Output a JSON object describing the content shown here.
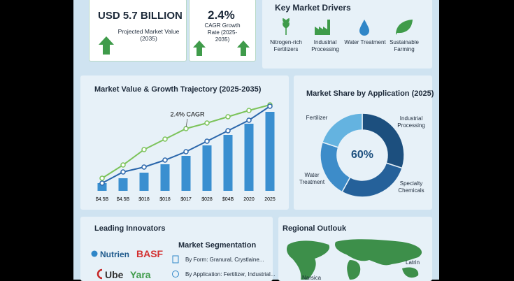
{
  "stat_cards": [
    {
      "headline": "USD 5.7 BILLION",
      "caption": "Projected Market Value (2035)"
    },
    {
      "headline": "2.4%",
      "caption": "CAGR Growth Rate (2025-2035)"
    }
  ],
  "drivers": {
    "title": "Key Market Drivers",
    "items": [
      "Nitrogen-rich Fertilizers",
      "Industrial Processing",
      "Water Treatment",
      "Sustainable Farming"
    ]
  },
  "chart_data": [
    {
      "type": "bar",
      "title": "Market Value & Growth Trajectory (2025-2035)",
      "annotation": "2.4% CAGR",
      "categories": [
        "$4.5B",
        "$4.5B",
        "$018",
        "$018",
        "$017",
        "$028",
        "$04B",
        "2020",
        "2025"
      ],
      "ylim": [
        0,
        130
      ],
      "series": [
        {
          "type": "bar",
          "color": "#3a8fd0",
          "values": [
            11,
            18,
            26,
            38,
            50,
            65,
            80,
            96,
            113
          ]
        },
        {
          "type": "line",
          "color": "#7cc35a",
          "values": [
            18,
            37,
            59,
            74,
            89,
            97,
            106,
            115,
            123
          ]
        },
        {
          "type": "line",
          "color": "#2a66ab",
          "values": [
            11,
            27,
            34,
            44,
            56,
            71,
            86,
            101,
            121
          ]
        }
      ]
    },
    {
      "type": "pie",
      "title": "Market Share by Application (2025)",
      "center_label": "60%",
      "donut": true,
      "categories": [
        "Industrial Processing",
        "Specialty Chemicals",
        "Water Treatment",
        "Fertilizer"
      ],
      "values": [
        30,
        28,
        22,
        20
      ],
      "colors": [
        "#1c4f7e",
        "#25619a",
        "#3d8cc9",
        "#64b3e0"
      ]
    }
  ],
  "innovators": {
    "title": "Leading Innovators",
    "companies": [
      "Nutrien",
      "BASF",
      "Ube",
      "Yara"
    ]
  },
  "segmentation": {
    "title": "Market Segmentation",
    "items": [
      "By Form: Granural, Crystlaine...",
      "By Application: Fertilizer, Industrial..."
    ]
  },
  "regional": {
    "title": "Regional Outlouk",
    "labels": [
      "Latrin",
      "Narsica"
    ]
  }
}
